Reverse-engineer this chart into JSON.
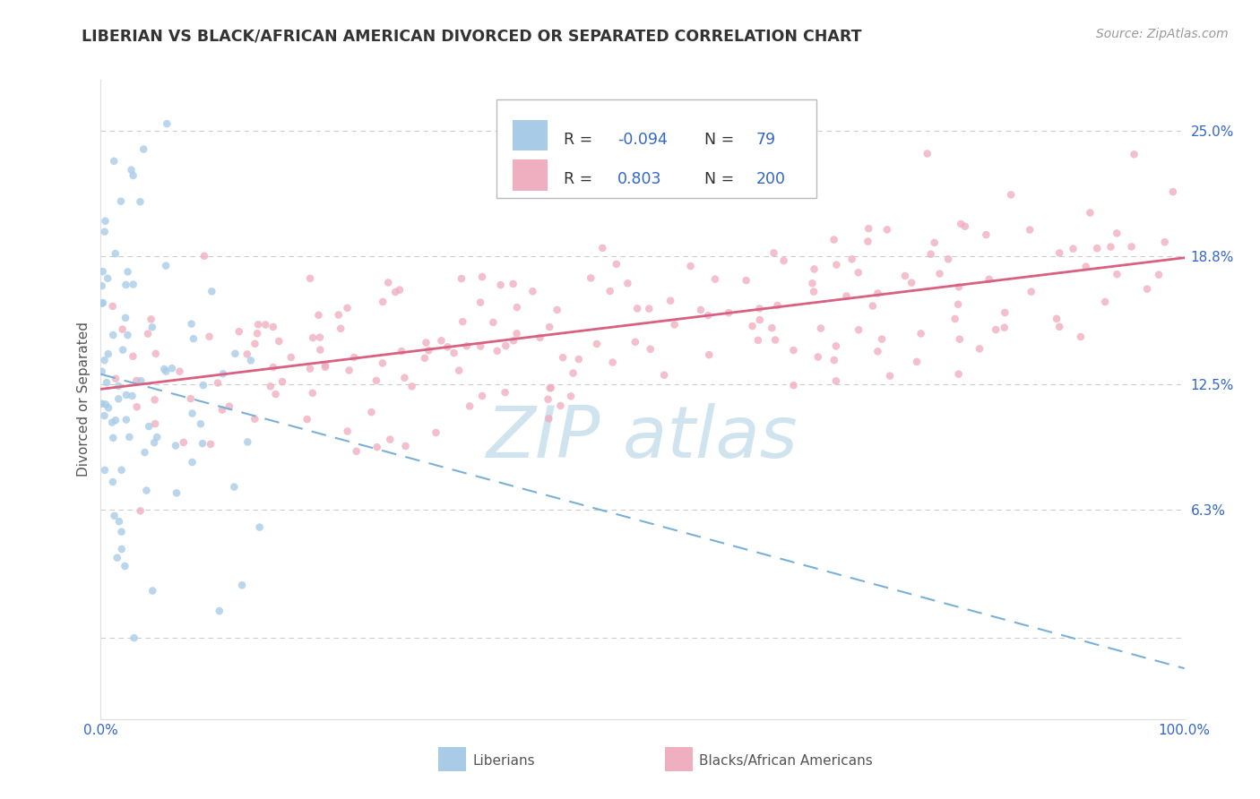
{
  "title": "LIBERIAN VS BLACK/AFRICAN AMERICAN DIVORCED OR SEPARATED CORRELATION CHART",
  "source": "Source: ZipAtlas.com",
  "ylabel": "Divorced or Separated",
  "ytick_vals": [
    0.0,
    0.063,
    0.125,
    0.188,
    0.25
  ],
  "ytick_labels": [
    "",
    "6.3%",
    "12.5%",
    "18.8%",
    "25.0%"
  ],
  "xtick_labels": [
    "0.0%",
    "100.0%"
  ],
  "legend_r1": "-0.094",
  "legend_n1": "79",
  "legend_r2": "0.803",
  "legend_n2": "200",
  "color_liberian": "#a8cce8",
  "color_black": "#f0afc0",
  "color_trendline_liberian": "#7ab0d8",
  "color_trendline_black": "#d86080",
  "watermark_color": "#d0e4f0",
  "ymin": -0.04,
  "ymax": 0.275,
  "xmin": 0.0,
  "xmax": 1.0
}
